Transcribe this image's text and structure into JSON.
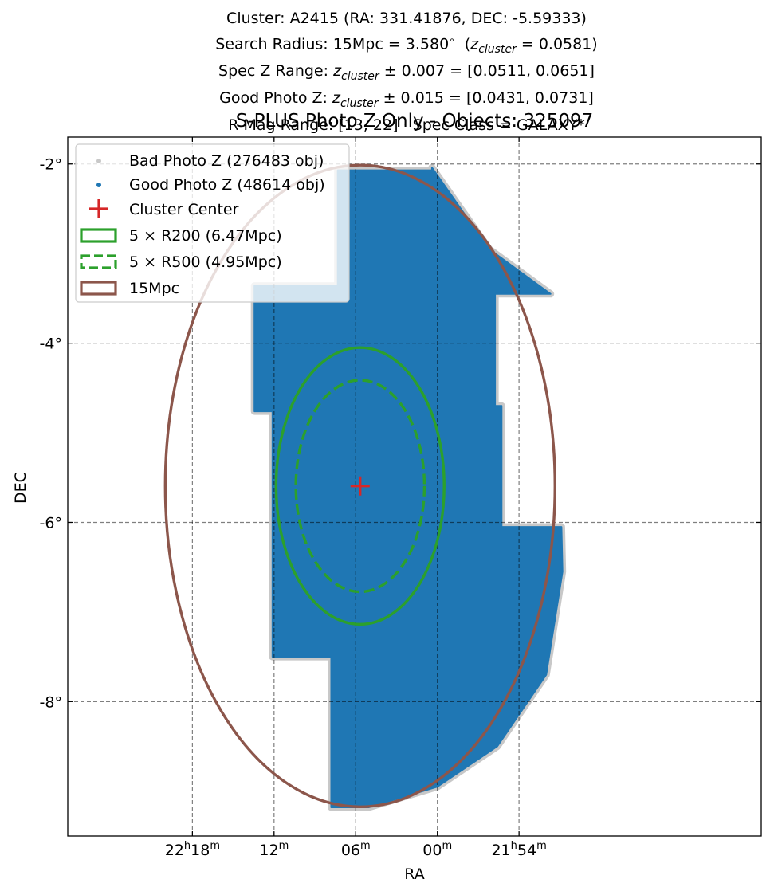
{
  "titles": {
    "cluster_line": "Cluster: A2415 (RA: 331.41876, DEC: -5.59333)",
    "radius_line_a": "Search Radius: 15Mpc = 3.580",
    "radius_line_b": "(",
    "radius_z": "z",
    "radius_sub": "cluster",
    "radius_line_c": " = 0.0581)",
    "spec_line_a": "Spec Z Range: ",
    "spec_z": "z",
    "spec_sub": "cluster",
    "spec_line_c": " ± 0.007 = [0.0511, 0.0651]",
    "good_line_a": "Good Photo Z: ",
    "good_z": "z",
    "good_sub": "cluster",
    "good_line_c": " ± 0.015 = [0.0431, 0.0731]",
    "mag_line": "R Mag Range: [13, 22] · Spec Class = GALAXY*",
    "main_title": "S-PLUS Photo Z Only - Objects: 325097"
  },
  "chart_data": {
    "type": "scatter",
    "xlabel": "RA",
    "ylabel": "DEC",
    "x_axis_direction": "RA increases to the left",
    "xlim_deg": [
      336.79,
      324.05
    ],
    "ylim_deg": [
      -9.5,
      -1.7
    ],
    "x_ticks": [
      {
        "ra_deg": 334.5,
        "hours": "22",
        "minutes": "18",
        "label_type": "full"
      },
      {
        "ra_deg": 333.0,
        "minutes": "12",
        "label_type": "minutes"
      },
      {
        "ra_deg": 331.5,
        "minutes": "06",
        "label_type": "minutes"
      },
      {
        "ra_deg": 330.0,
        "minutes": "00",
        "label_type": "minutes"
      },
      {
        "ra_deg": 328.5,
        "hours": "21",
        "minutes": "54",
        "label_type": "full"
      }
    ],
    "y_ticks": [
      {
        "dec_deg": -2,
        "label": "-2°"
      },
      {
        "dec_deg": -4,
        "label": "-4°"
      },
      {
        "dec_deg": -6,
        "label": "-6°"
      },
      {
        "dec_deg": -8,
        "label": "-8°"
      }
    ],
    "hour_sup": "h",
    "minute_sup": "m",
    "grid": true,
    "legend_position": "top-left",
    "center": {
      "ra": 331.41876,
      "dec": -5.59333
    },
    "circles": [
      {
        "name": "5 × R200 (6.47Mpc)",
        "radius_deg": 1.544,
        "style": "solid",
        "color": "#2ca02c"
      },
      {
        "name": "5 × R500 (4.95Mpc)",
        "radius_deg": 1.181,
        "style": "dashed",
        "color": "#2ca02c"
      },
      {
        "name": "15Mpc",
        "radius_deg": 3.58,
        "style": "solid",
        "color": "#8c564b"
      }
    ],
    "series": [
      {
        "name": "Bad Photo Z (276483 obj)",
        "count": 276483,
        "color": "#c8c8c8",
        "marker": "dot"
      },
      {
        "name": "Good Photo Z (48614 obj)",
        "count": 48614,
        "color": "#1f77b4",
        "marker": "dot"
      },
      {
        "name": "Cluster Center",
        "color": "#d62728",
        "marker": "plus"
      }
    ],
    "footprint_dec_ra_polygon": [
      [
        333.36,
        -3.36
      ],
      [
        331.83,
        -3.36
      ],
      [
        331.83,
        -2.07
      ],
      [
        330.1,
        -2.07
      ],
      [
        330.1,
        -2.04
      ],
      [
        329.05,
        -2.95
      ],
      [
        327.92,
        -3.45
      ],
      [
        328.94,
        -3.45
      ],
      [
        328.94,
        -4.7
      ],
      [
        328.82,
        -4.7
      ],
      [
        328.82,
        -6.05
      ],
      [
        327.72,
        -6.05
      ],
      [
        327.7,
        -6.55
      ],
      [
        328.0,
        -7.7
      ],
      [
        328.9,
        -8.5
      ],
      [
        330.0,
        -8.95
      ],
      [
        331.26,
        -9.18
      ],
      [
        331.95,
        -9.18
      ],
      [
        331.95,
        -7.5
      ],
      [
        333.03,
        -7.5
      ],
      [
        333.03,
        -4.76
      ],
      [
        333.36,
        -4.76
      ]
    ]
  }
}
